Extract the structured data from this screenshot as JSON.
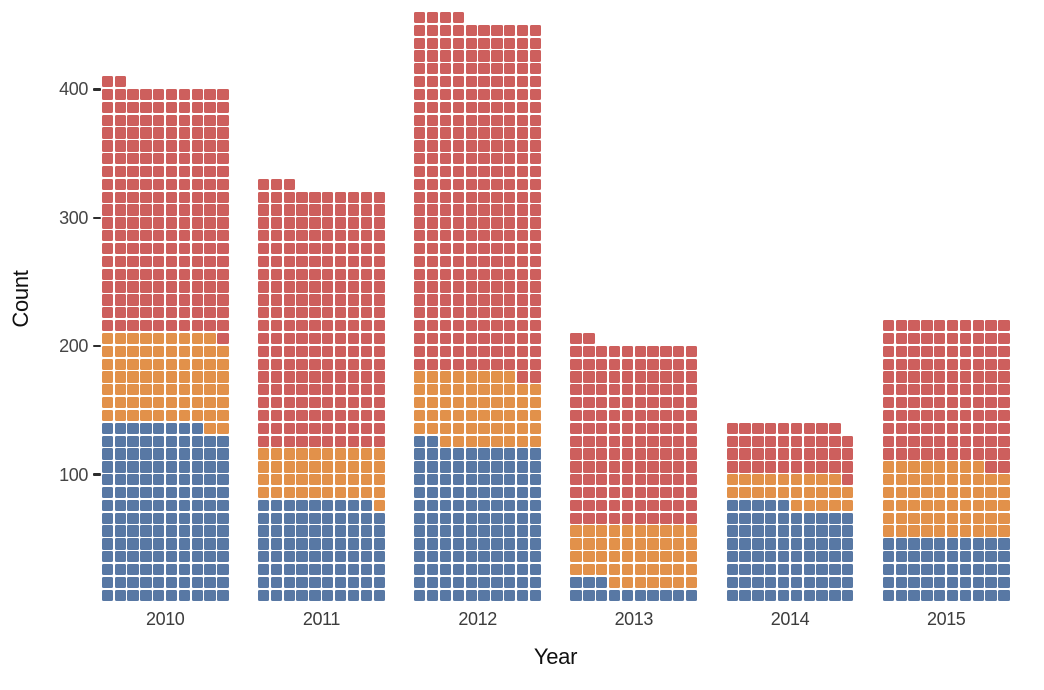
{
  "chart_data": {
    "type": "bar",
    "subtype": "waffle-stacked-bars",
    "title": "",
    "xlabel": "Year",
    "ylabel": "Count",
    "categories": [
      "2010",
      "2011",
      "2012",
      "2013",
      "2014",
      "2015"
    ],
    "series": [
      {
        "name": "blue-bottom-segment",
        "color": "#5878a4",
        "values": [
          138,
          79,
          122,
          13,
          75,
          50
        ]
      },
      {
        "name": "orange-middle-segment",
        "color": "#e2914a",
        "values": [
          71,
          41,
          56,
          47,
          24,
          58
        ]
      },
      {
        "name": "red-top-segment",
        "color": "#cd5f5d",
        "values": [
          193,
          203,
          276,
          142,
          40,
          112
        ]
      }
    ],
    "totals": [
      402,
      323,
      454,
      202,
      139,
      220
    ],
    "squares_per_row": 10,
    "count_per_square": 1,
    "y_ticks": [
      "100",
      "200",
      "300",
      "400"
    ],
    "ylim": [
      0,
      460
    ],
    "grid": false,
    "legend": "none",
    "square_gap_color": "#ffffff",
    "axis_text_color": "#454545",
    "axis_title_color": "#101010",
    "background": "#ffffff"
  }
}
